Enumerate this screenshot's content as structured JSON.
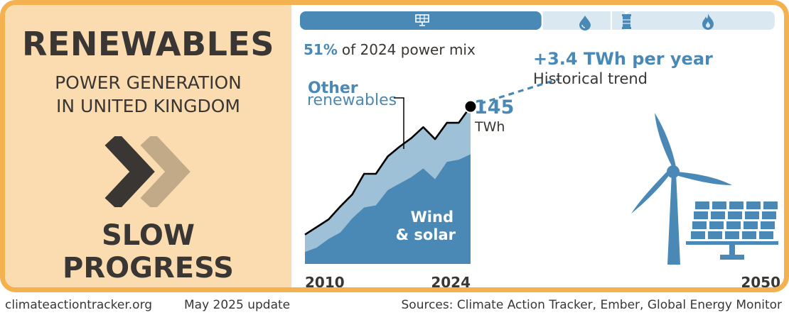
{
  "header": {
    "title": "RENEWABLES",
    "subtitle_line1": "POWER GENERATION",
    "subtitle_line2": "IN UNITED KINGDOM"
  },
  "rating": {
    "line1": "SLOW",
    "line2": "PROGRESS",
    "icon": "double-chevron-right-icon"
  },
  "mix_bar": {
    "share_value": "51%",
    "share_text": "of 2024 power mix",
    "segments": [
      {
        "icon": "solar-panel-icon",
        "fraction": 0.51,
        "color": "#4a89b6"
      },
      {
        "icon": "water-drop-icon",
        "fraction": 0.145,
        "color": "#dae8f1"
      },
      {
        "icon": "barrel-icon",
        "fraction": 0.03,
        "color": "#dae8f1"
      },
      {
        "icon": "flame-icon",
        "fraction": 0.315,
        "color": "#dae8f1"
      }
    ]
  },
  "chart_data": {
    "type": "area",
    "x": [
      2010,
      2011,
      2012,
      2013,
      2014,
      2015,
      2016,
      2017,
      2018,
      2019,
      2020,
      2021,
      2022,
      2023,
      2024
    ],
    "series": [
      {
        "name": "Wind & solar",
        "values": [
          11,
          15,
          23,
          29,
          42,
          52,
          54,
          68,
          74,
          80,
          88,
          78,
          94,
          96,
          101
        ],
        "color": "#4a89b6"
      },
      {
        "name": "Other renewables",
        "values": [
          16,
          19,
          18,
          24,
          22,
          31,
          29,
          31,
          34,
          36,
          38,
          37,
          36,
          34,
          44
        ],
        "color": "#9fc1d8"
      }
    ],
    "total_label_value": "145",
    "total_label_unit": "TWh",
    "trend_label": "+3.4 TWh per year",
    "trend_sublabel": "Historical trend",
    "trend_slope": 3.4,
    "x_tick_labels": [
      "2010",
      "2024",
      "2050"
    ],
    "xlim": [
      2010,
      2050
    ],
    "ylim": [
      0,
      160
    ],
    "colors": {
      "total_line": "#000000",
      "trend": "#4a89b6"
    }
  },
  "footer": {
    "site": "climateactiontracker.org",
    "update": "May 2025 update",
    "sources": "Sources: Climate Action Tracker, Ember, Global Energy Monitor"
  },
  "colors": {
    "frame": "#f3b14f",
    "left_panel": "#fbdcb0",
    "dark_text": "#3a3633",
    "chevron_light": "#c2a988",
    "accent_blue": "#4a89b6"
  },
  "illustration": {
    "icons": [
      "wind-turbine-icon",
      "solar-panel-array-icon"
    ]
  }
}
